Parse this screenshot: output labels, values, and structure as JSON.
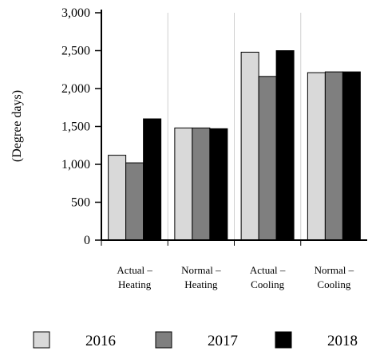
{
  "chart_data": {
    "type": "bar",
    "ylabel": "(Degree days)",
    "ylim": [
      0,
      3000
    ],
    "yticks": [
      0,
      500,
      1000,
      1500,
      2000,
      2500,
      3000
    ],
    "ytick_labels": [
      "0",
      "500",
      "1,000",
      "1,500",
      "2,000",
      "2,500",
      "3,000"
    ],
    "grid": "vertical lines between categories",
    "legend_position": "bottom",
    "categories": [
      [
        "Actual –",
        "Heating"
      ],
      [
        "Normal –",
        "Heating"
      ],
      [
        "Actual –",
        "Cooling"
      ],
      [
        "Normal –",
        "Cooling"
      ]
    ],
    "series": [
      {
        "name": "2016",
        "color": "#d9d9d9",
        "values": [
          1120,
          1480,
          2480,
          2210
        ]
      },
      {
        "name": "2017",
        "color": "#7f7f7f",
        "values": [
          1020,
          1480,
          2160,
          2220
        ]
      },
      {
        "name": "2018",
        "color": "#000000",
        "values": [
          1600,
          1470,
          2500,
          2220
        ]
      }
    ]
  }
}
